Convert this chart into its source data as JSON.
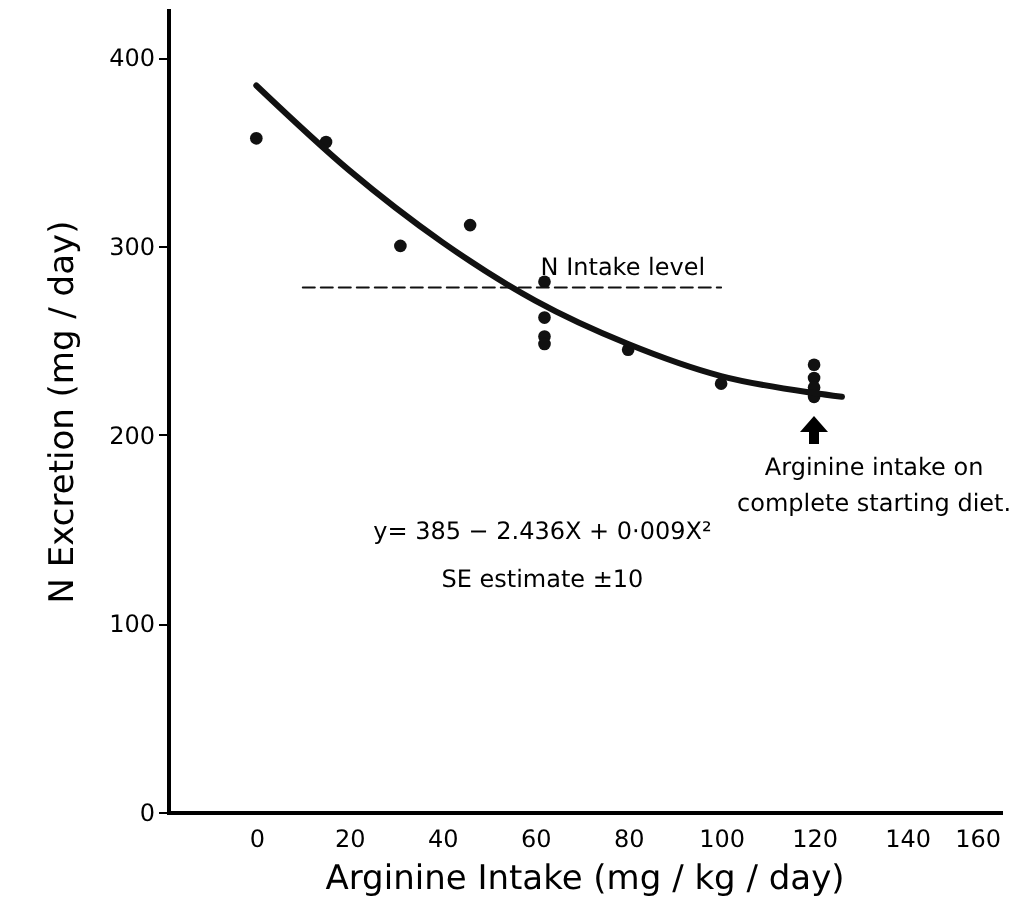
{
  "chart_data": {
    "type": "scatter",
    "xlabel": "Arginine  Intake  (mg / kg / day)",
    "ylabel": "N Excretion  (mg / day)",
    "xlim": [
      -19,
      160
    ],
    "xticks": [
      0,
      20,
      40,
      60,
      80,
      100,
      120,
      140,
      160
    ],
    "ylim": [
      0,
      425
    ],
    "yticks": [
      0,
      100,
      200,
      300,
      400
    ],
    "grid": false,
    "legend": false,
    "series": [
      {
        "marker": "circle",
        "color": "#111111",
        "x": [
          0,
          15,
          31,
          46,
          62,
          62,
          62,
          62,
          80,
          100,
          120,
          120,
          120,
          120
        ],
        "values": [
          357,
          355,
          300,
          311,
          281,
          262,
          252,
          248,
          245,
          227,
          237,
          230,
          225,
          220
        ]
      },
      {
        "type": "line",
        "marker": "none",
        "color": "#111111",
        "line_style": "solid",
        "x": [
          0,
          20,
          40,
          60,
          80,
          100,
          120,
          126
        ],
        "values": [
          385,
          340,
          302,
          271,
          248,
          231,
          222,
          220
        ]
      },
      {
        "type": "line",
        "marker": "none",
        "name": "N Intake level",
        "color": "#111111",
        "line_style": "dashed",
        "x": [
          10,
          100
        ],
        "values": [
          278,
          278
        ]
      }
    ],
    "annotations": [
      {
        "text": "Arginine intake on complete starting diet.",
        "x": 120,
        "y": 220
      },
      "y= 385 − 2.436X + 0·009X²",
      "SE estimate ±10"
    ]
  }
}
